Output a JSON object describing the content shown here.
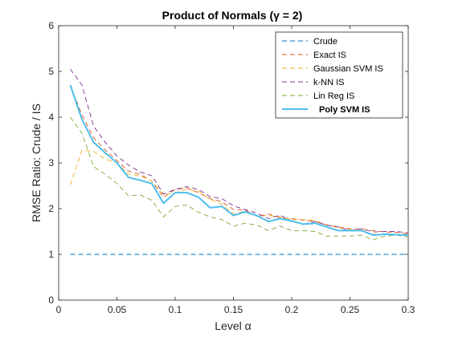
{
  "chart_data": {
    "type": "line",
    "title": "Product of Normals (γ = 2)",
    "xlabel": "Level α",
    "ylabel": "RMSE Ratio: Crude / IS",
    "xlim": [
      0,
      0.3
    ],
    "ylim": [
      0,
      6
    ],
    "xticks": [
      "0",
      "0.05",
      "0.1",
      "0.15",
      "0.2",
      "0.25",
      "0.3"
    ],
    "yticks": [
      "0",
      "1",
      "2",
      "3",
      "4",
      "5",
      "6"
    ],
    "grid": false,
    "legend_position": "top-right",
    "x": [
      0.01,
      0.02,
      0.03,
      0.04,
      0.05,
      0.06,
      0.07,
      0.08,
      0.09,
      0.1,
      0.11,
      0.12,
      0.13,
      0.14,
      0.15,
      0.16,
      0.17,
      0.18,
      0.19,
      0.2,
      0.21,
      0.22,
      0.23,
      0.24,
      0.25,
      0.26,
      0.27,
      0.28,
      0.29,
      0.3
    ],
    "series": [
      {
        "name": "Crude",
        "color": "#0072BD",
        "style": "dashed",
        "values": [
          1,
          1,
          1,
          1,
          1,
          1,
          1,
          1,
          1,
          1,
          1,
          1,
          1,
          1,
          1,
          1,
          1,
          1,
          1,
          1,
          1,
          1,
          1,
          1,
          1,
          1,
          1,
          1,
          1,
          1
        ]
      },
      {
        "name": "Exact IS",
        "color": "#D95319",
        "style": "dashed",
        "values": [
          4.7,
          4.05,
          3.55,
          3.28,
          3.05,
          2.82,
          2.75,
          2.6,
          2.25,
          2.42,
          2.45,
          2.35,
          2.22,
          2.15,
          1.98,
          1.97,
          1.83,
          1.88,
          1.8,
          1.78,
          1.75,
          1.72,
          1.64,
          1.6,
          1.56,
          1.55,
          1.52,
          1.49,
          1.48,
          1.45
        ]
      },
      {
        "name": "Gaussian SVM IS",
        "color": "#EDB120",
        "style": "dashed",
        "values": [
          2.52,
          3.28,
          3.25,
          3.08,
          3.0,
          2.75,
          2.72,
          2.6,
          2.3,
          2.35,
          2.42,
          2.38,
          2.2,
          2.1,
          1.88,
          1.95,
          1.84,
          1.85,
          1.82,
          1.76,
          1.76,
          1.74,
          1.65,
          1.58,
          1.54,
          1.52,
          1.44,
          1.44,
          1.44,
          1.43
        ]
      },
      {
        "name": "k-NN IS",
        "color": "#7E2F8E",
        "style": "dashed",
        "values": [
          5.05,
          4.7,
          3.8,
          3.45,
          3.15,
          2.95,
          2.8,
          2.72,
          2.32,
          2.42,
          2.48,
          2.42,
          2.26,
          2.22,
          2.06,
          1.98,
          1.9,
          1.78,
          1.86,
          1.72,
          1.66,
          1.72,
          1.64,
          1.6,
          1.52,
          1.56,
          1.49,
          1.5,
          1.5,
          1.47
        ]
      },
      {
        "name": "Lin Reg IS",
        "color": "#77AC30",
        "style": "dashed",
        "values": [
          4.0,
          3.65,
          2.92,
          2.75,
          2.55,
          2.28,
          2.3,
          2.18,
          1.82,
          2.05,
          2.08,
          1.92,
          1.82,
          1.76,
          1.62,
          1.68,
          1.64,
          1.52,
          1.62,
          1.52,
          1.52,
          1.5,
          1.4,
          1.4,
          1.4,
          1.42,
          1.32,
          1.4,
          1.42,
          1.38
        ]
      },
      {
        "name": "Poly SVM IS",
        "color": "#4DBEEE",
        "style": "solid",
        "bold": true,
        "values": [
          4.7,
          3.95,
          3.45,
          3.22,
          3.0,
          2.68,
          2.62,
          2.55,
          2.12,
          2.35,
          2.35,
          2.25,
          2.02,
          2.05,
          1.85,
          1.93,
          1.85,
          1.72,
          1.78,
          1.73,
          1.66,
          1.68,
          1.6,
          1.52,
          1.52,
          1.52,
          1.42,
          1.44,
          1.43,
          1.42
        ]
      }
    ]
  }
}
